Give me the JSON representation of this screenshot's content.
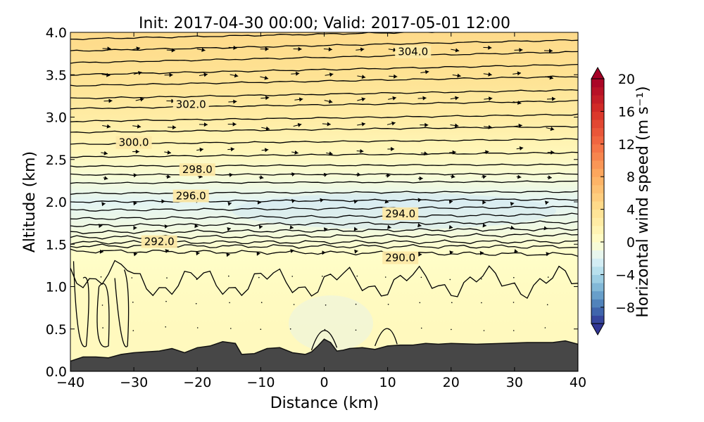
{
  "chart_data": {
    "type": "heatmap",
    "title": "Init: 2017-04-30 00:00; Valid: 2017-05-01 12:00",
    "xlabel": "Distance (km)",
    "ylabel": "Altitude (km)",
    "xlim": [
      -40,
      40
    ],
    "ylim": [
      0.0,
      4.0
    ],
    "x_ticks": [
      "−40",
      "−30",
      "−20",
      "−10",
      "0",
      "10",
      "20",
      "30",
      "40"
    ],
    "y_ticks": [
      "0.0",
      "0.5",
      "1.0",
      "1.5",
      "2.0",
      "2.5",
      "3.0",
      "3.5",
      "4.0"
    ],
    "colorbar": {
      "label": "Horizontal wind speed (m s⁻¹)",
      "range": [
        -10,
        20
      ],
      "extend": "both",
      "ticks": [
        "20",
        "16",
        "12",
        "8",
        "4",
        "0",
        "−4",
        "−8"
      ],
      "tick_values": [
        20,
        16,
        12,
        8,
        4,
        0,
        -4,
        -8
      ]
    },
    "filled_field": [
      {
        "altitude": 0.5,
        "value": 0.8
      },
      {
        "altitude": 1.0,
        "value": 0.6
      },
      {
        "altitude": 1.4,
        "value": 0.2
      },
      {
        "altitude": 1.7,
        "value": -1.0
      },
      {
        "altitude": 2.0,
        "value": -1.8
      },
      {
        "altitude": 2.3,
        "value": -0.5
      },
      {
        "altitude": 2.6,
        "value": 1.2
      },
      {
        "altitude": 3.0,
        "value": 2.5
      },
      {
        "altitude": 3.5,
        "value": 3.8
      },
      {
        "altitude": 4.0,
        "value": 4.5
      }
    ],
    "contours": {
      "variable": "potential temperature",
      "labeled_levels": [
        {
          "label": "304.0",
          "x": 14,
          "altitude": 3.77
        },
        {
          "label": "302.0",
          "x": -21,
          "altitude": 3.15
        },
        {
          "label": "300.0",
          "x": -30,
          "altitude": 2.7
        },
        {
          "label": "298.0",
          "x": -20,
          "altitude": 2.38
        },
        {
          "label": "296.0",
          "x": -21,
          "altitude": 2.07
        },
        {
          "label": "294.0",
          "x": 12,
          "altitude": 1.86
        },
        {
          "label": "292.0",
          "x": -26,
          "altitude": 1.53
        },
        {
          "label": "290.0",
          "x": 12,
          "altitude": 1.34
        }
      ],
      "level_altitudes_west": [
        1.42,
        1.48,
        1.52,
        1.58,
        1.64,
        1.72,
        1.8,
        1.9,
        2.0,
        2.1,
        2.22,
        2.32,
        2.42,
        2.53,
        2.68,
        2.82,
        2.95,
        3.1,
        3.22,
        3.37,
        3.5,
        3.64,
        3.78,
        3.92
      ],
      "level_tilt_km": [
        -0.04,
        -0.01,
        0.01,
        0.03,
        0.04,
        0.04,
        0.05,
        0.04,
        0.03,
        0.02,
        0.02,
        0.01,
        0.02,
        0.05,
        0.06,
        0.07,
        0.08,
        0.09,
        0.1,
        0.11,
        0.12,
        0.13,
        0.13,
        0.12
      ]
    },
    "terrain": {
      "x": [
        -40,
        -38,
        -36,
        -34,
        -32,
        -30,
        -28,
        -26,
        -24,
        -22,
        -20,
        -18,
        -16,
        -14,
        -13,
        -11,
        -9,
        -7,
        -5,
        -3,
        -2,
        -1,
        0,
        1,
        2,
        3,
        4,
        6,
        8,
        10,
        12,
        14,
        16,
        18,
        20,
        24,
        28,
        32,
        36,
        38,
        40
      ],
      "altitude": [
        0.12,
        0.17,
        0.17,
        0.16,
        0.2,
        0.22,
        0.23,
        0.24,
        0.27,
        0.22,
        0.28,
        0.3,
        0.35,
        0.33,
        0.2,
        0.21,
        0.27,
        0.28,
        0.22,
        0.2,
        0.23,
        0.3,
        0.38,
        0.34,
        0.24,
        0.25,
        0.27,
        0.28,
        0.26,
        0.3,
        0.31,
        0.31,
        0.33,
        0.32,
        0.33,
        0.32,
        0.33,
        0.34,
        0.34,
        0.36,
        0.32
      ]
    }
  }
}
